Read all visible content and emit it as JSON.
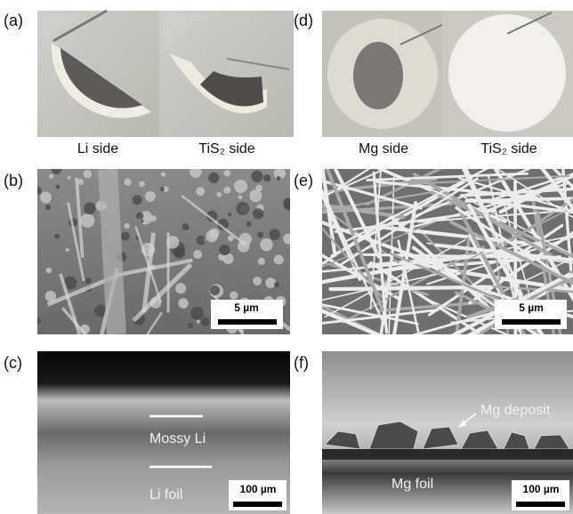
{
  "panels": [
    {
      "label": "(a)",
      "captions": [
        "Li side",
        "TiS₂ side"
      ]
    },
    {
      "label": "(b)",
      "scale_bar": "5 µm"
    },
    {
      "label": "(c)",
      "scale_bar": "100 µm",
      "annotations": [
        "Mossy Li",
        "Li foil"
      ]
    },
    {
      "label": "(d)",
      "captions": [
        "Mg side",
        "TiS₂ side"
      ]
    },
    {
      "label": "(e)",
      "scale_bar": "5 µm"
    },
    {
      "label": "(f)",
      "scale_bar": "100 µm",
      "annotations": [
        "Mg deposit",
        "Mg foil"
      ]
    }
  ]
}
